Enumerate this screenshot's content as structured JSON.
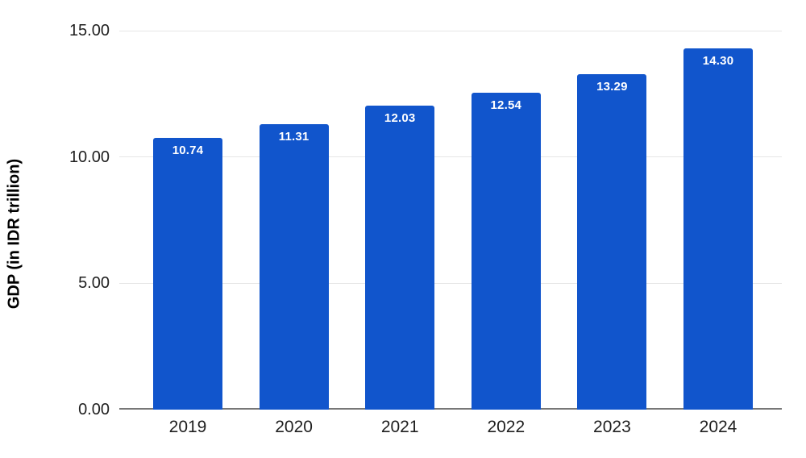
{
  "chart_data": {
    "type": "bar",
    "title": "",
    "xlabel": "",
    "ylabel": "GDP (in IDR trillion)",
    "categories": [
      "2019",
      "2020",
      "2021",
      "2022",
      "2023",
      "2024"
    ],
    "values": [
      10.74,
      11.31,
      12.03,
      12.54,
      13.29,
      14.3
    ],
    "value_labels": [
      "10.74",
      "11.31",
      "12.03",
      "12.54",
      "13.29",
      "14.30"
    ],
    "ylim": [
      0,
      15
    ],
    "yticks": [
      0,
      5,
      10,
      15
    ],
    "ytick_labels": [
      "0.00",
      "5.00",
      "10.00",
      "15.00"
    ],
    "grid": true,
    "legend": "none",
    "colors": {
      "bar": "#1155cc",
      "gridline": "#e6e6e6",
      "axis_line": "#777777",
      "tick_text": "#1f1f1f",
      "value_label_text": "#ffffff",
      "background": "#ffffff"
    }
  }
}
